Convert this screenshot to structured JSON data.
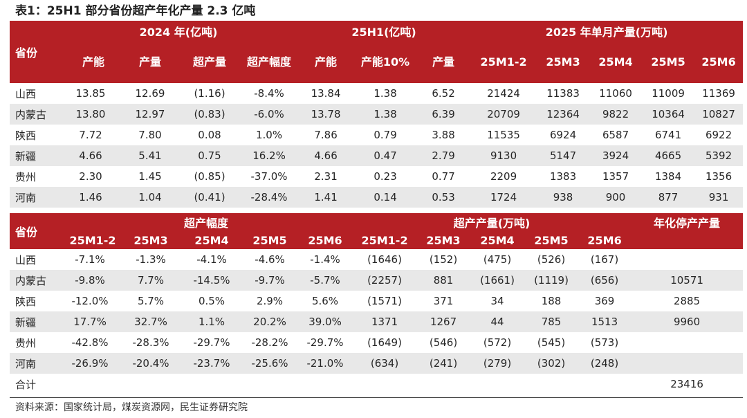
{
  "title": "表1：25H1 部分省份超产年化产量 2.3 亿吨",
  "table1": {
    "header_province": "省份",
    "group_2024": "2024 年(亿吨)",
    "group_25h1": "25H1(亿吨)",
    "group_2025_monthly": "2025 年单月产量(万吨)",
    "columns": [
      "产能",
      "产量",
      "超产量",
      "超产幅度",
      "产能",
      "产能10%",
      "产量",
      "25M1-2",
      "25M3",
      "25M4",
      "25M5",
      "25M6"
    ],
    "rows": [
      {
        "province": "山西",
        "cells": [
          "13.85",
          "12.69",
          "(1.16)",
          "-8.4%",
          "13.84",
          "1.38",
          "6.52",
          "21424",
          "11383",
          "11060",
          "11009",
          "11369"
        ]
      },
      {
        "province": "内蒙古",
        "cells": [
          "13.80",
          "12.97",
          "(0.83)",
          "-6.0%",
          "13.78",
          "1.38",
          "6.39",
          "20709",
          "12364",
          "9822",
          "10364",
          "10827"
        ]
      },
      {
        "province": "陕西",
        "cells": [
          "7.72",
          "7.80",
          "0.08",
          "1.0%",
          "7.86",
          "0.79",
          "3.88",
          "11535",
          "6924",
          "6587",
          "6741",
          "6922"
        ]
      },
      {
        "province": "新疆",
        "cells": [
          "4.66",
          "5.41",
          "0.75",
          "16.2%",
          "4.66",
          "0.47",
          "2.79",
          "9130",
          "5147",
          "3924",
          "4665",
          "5392"
        ]
      },
      {
        "province": "贵州",
        "cells": [
          "2.30",
          "1.45",
          "(0.85)",
          "-37.0%",
          "2.31",
          "0.23",
          "0.77",
          "2209",
          "1383",
          "1357",
          "1384",
          "1356"
        ]
      },
      {
        "province": "河南",
        "cells": [
          "1.46",
          "1.04",
          "(0.41)",
          "-28.4%",
          "1.41",
          "0.14",
          "0.53",
          "1724",
          "938",
          "900",
          "877",
          "931"
        ]
      }
    ]
  },
  "table2": {
    "header_province": "省份",
    "group_range": "超产幅度",
    "group_amount": "超产产量(万吨)",
    "header_annual": "年化停产产量",
    "columns": [
      "25M1-2",
      "25M3",
      "25M4",
      "25M5",
      "25M6",
      "25M1-2",
      "25M3",
      "25M4",
      "25M5",
      "25M6"
    ],
    "rows": [
      {
        "province": "山西",
        "cells": [
          "-7.1%",
          "-1.3%",
          "-4.1%",
          "-4.6%",
          "-1.4%",
          "(1646)",
          "(152)",
          "(475)",
          "(526)",
          "(167)"
        ],
        "annual": ""
      },
      {
        "province": "内蒙古",
        "cells": [
          "-9.8%",
          "7.7%",
          "-14.5%",
          "-9.7%",
          "-5.7%",
          "(2257)",
          "881",
          "(1661)",
          "(1119)",
          "(656)"
        ],
        "annual": "10571"
      },
      {
        "province": "陕西",
        "cells": [
          "-12.0%",
          "5.7%",
          "0.5%",
          "2.9%",
          "5.6%",
          "(1571)",
          "371",
          "34",
          "188",
          "369"
        ],
        "annual": "2885"
      },
      {
        "province": "新疆",
        "cells": [
          "17.7%",
          "32.7%",
          "1.1%",
          "20.2%",
          "39.0%",
          "1371",
          "1267",
          "44",
          "785",
          "1513"
        ],
        "annual": "9960"
      },
      {
        "province": "贵州",
        "cells": [
          "-42.8%",
          "-28.3%",
          "-29.7%",
          "-28.2%",
          "-29.7%",
          "(1649)",
          "(546)",
          "(572)",
          "(545)",
          "(573)"
        ],
        "annual": ""
      },
      {
        "province": "河南",
        "cells": [
          "-26.9%",
          "-20.4%",
          "-23.7%",
          "-25.6%",
          "-21.0%",
          "(634)",
          "(241)",
          "(279)",
          "(302)",
          "(248)"
        ],
        "annual": ""
      }
    ],
    "total_label": "合计",
    "total_value": "23416"
  },
  "source": "资料来源：国家统计局，煤炭资源网，民生证券研究院",
  "colors": {
    "header_bg": "#b52025",
    "alt_row_bg": "#e8e8e8"
  }
}
